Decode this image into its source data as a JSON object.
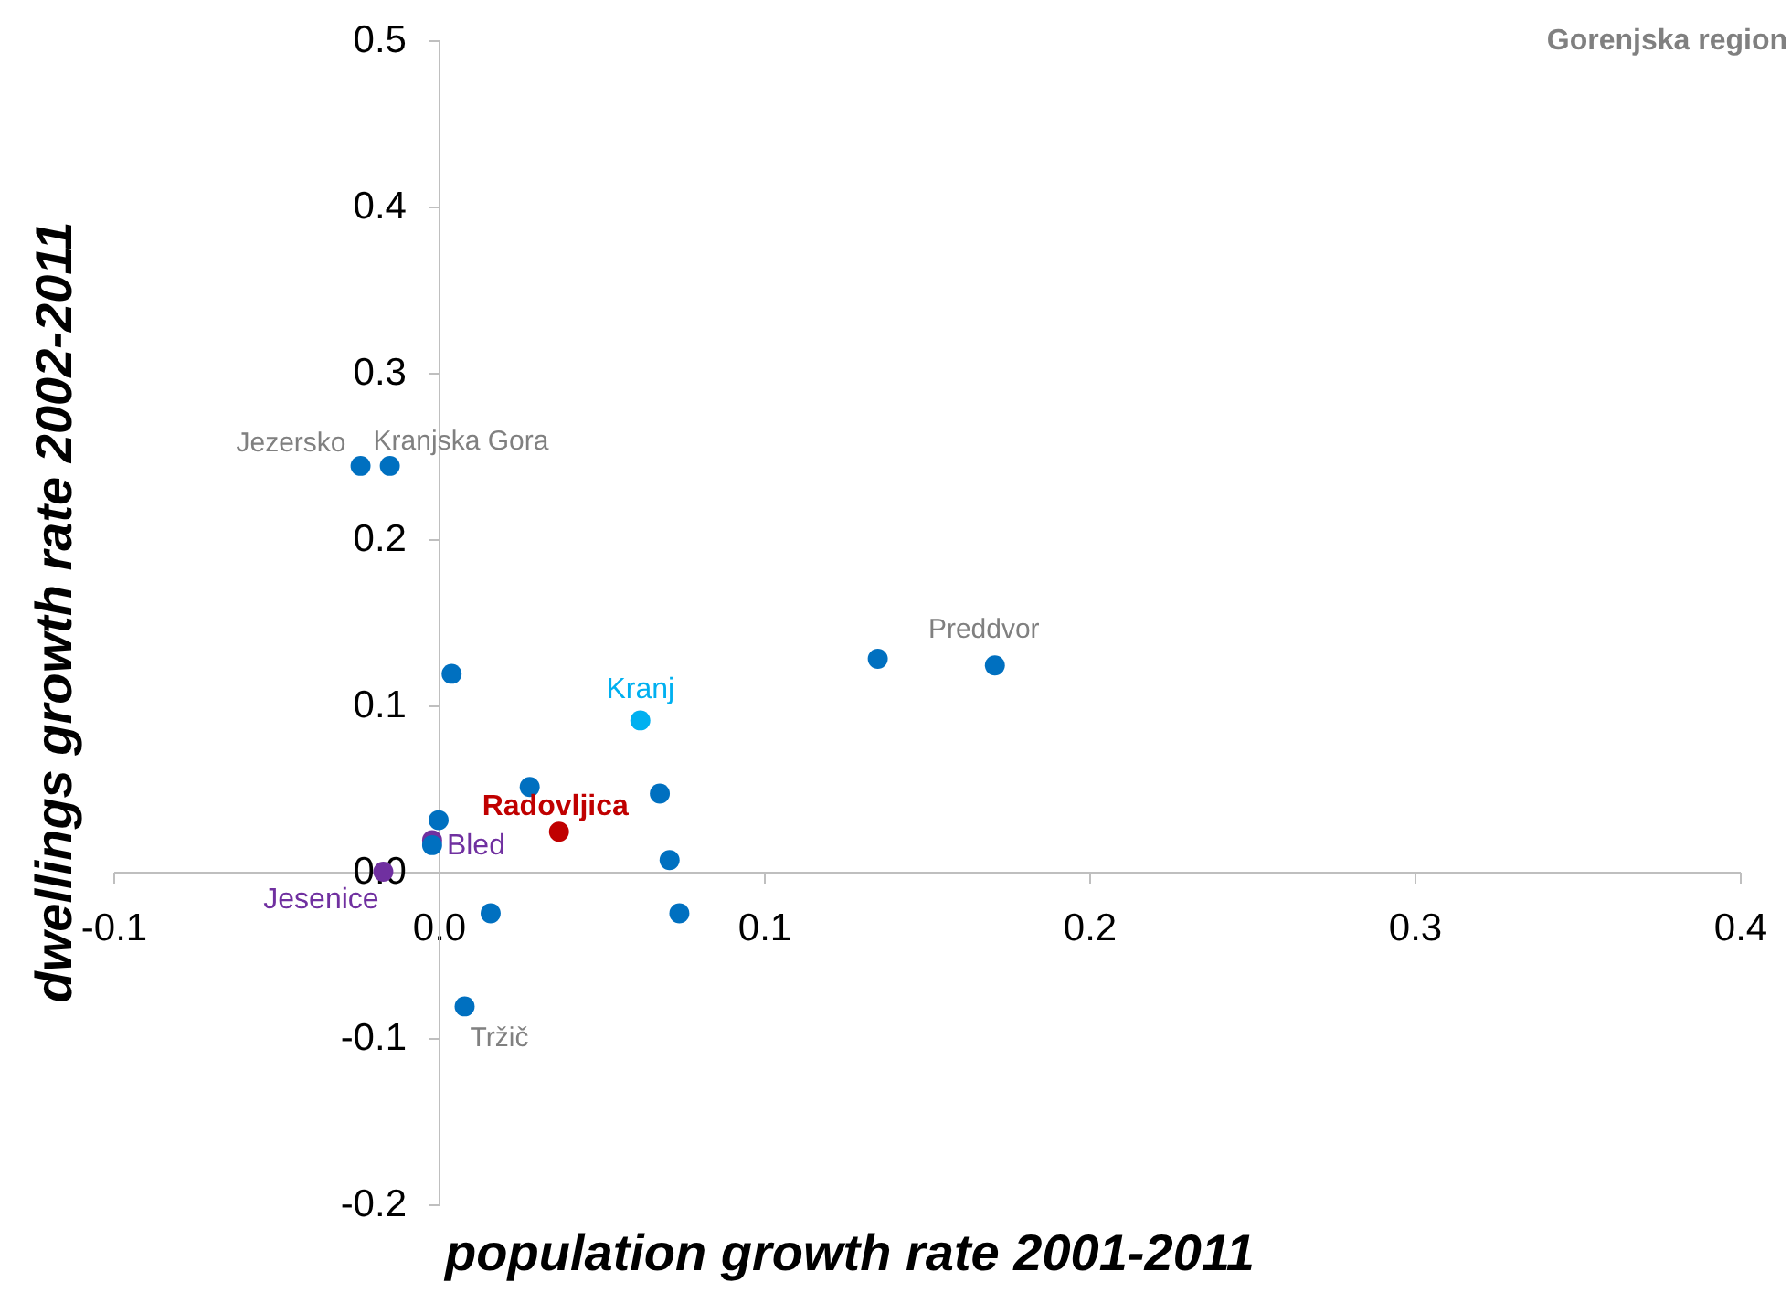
{
  "chart_data": {
    "type": "scatter",
    "xlabel": "population growth rate 2001-2011",
    "ylabel": "dwellings growth rate 2002-2011",
    "xlim": [
      -0.1,
      0.4
    ],
    "xticks": [
      {
        "value": -0.1,
        "label": "-0.1"
      },
      {
        "value": 0,
        "label": "0.0"
      },
      {
        "value": 0.1,
        "label": "0.1"
      },
      {
        "value": 0.2,
        "label": "0.2"
      },
      {
        "value": 0.3,
        "label": "0.3"
      },
      {
        "value": 0.4,
        "label": "0.4"
      }
    ],
    "ylim": [
      -0.2,
      0.5
    ],
    "yticks": [
      {
        "value": -0.2,
        "label": "-0.2"
      },
      {
        "value": -0.1,
        "label": "-0.1"
      },
      {
        "value": 0,
        "label": "0.0"
      },
      {
        "value": 0.1,
        "label": "0.1"
      },
      {
        "value": 0.2,
        "label": "0.2"
      },
      {
        "value": 0.3,
        "label": "0.3"
      },
      {
        "value": 0.4,
        "label": "0.4"
      },
      {
        "value": 0.5,
        "label": "0.5"
      }
    ],
    "grid": false,
    "marker": "circle",
    "series": [
      {
        "color": "#0070c0",
        "x": [
          -0.024,
          -0.015,
          0.004,
          0.135,
          0.171,
          0.028,
          0.068,
          0.0,
          -0.002,
          0.071,
          0.016,
          0.074,
          0.008
        ],
        "values": [
          0.244,
          0.244,
          0.119,
          0.128,
          0.124,
          0.051,
          0.047,
          0.031,
          0.016,
          0.007,
          -0.025,
          -0.025,
          -0.081
        ]
      },
      {
        "name": "Kranj",
        "color": "#00b0f0",
        "x": [
          0.062
        ],
        "values": [
          0.091
        ]
      },
      {
        "name": "Radovljica",
        "color": "#c00000",
        "x": [
          0.037
        ],
        "values": [
          0.024
        ]
      },
      {
        "name": "Bled",
        "color": "#7030a0",
        "x": [
          -0.002
        ],
        "values": [
          0.019
        ]
      },
      {
        "name": "Jesenice",
        "color": "#7030a0",
        "x": [
          -0.017
        ],
        "values": [
          0.0
        ]
      }
    ],
    "annotations": [
      "Gorenjska region",
      {
        "text": "Jezersko",
        "x": -0.024,
        "y": 0.244
      },
      {
        "text": "Kranjska Gora",
        "x": -0.015,
        "y": 0.244
      },
      {
        "text": "Preddvor",
        "x": 0.171,
        "y": 0.124
      },
      {
        "text": "Tržič",
        "x": 0.008,
        "y": -0.081
      }
    ]
  }
}
